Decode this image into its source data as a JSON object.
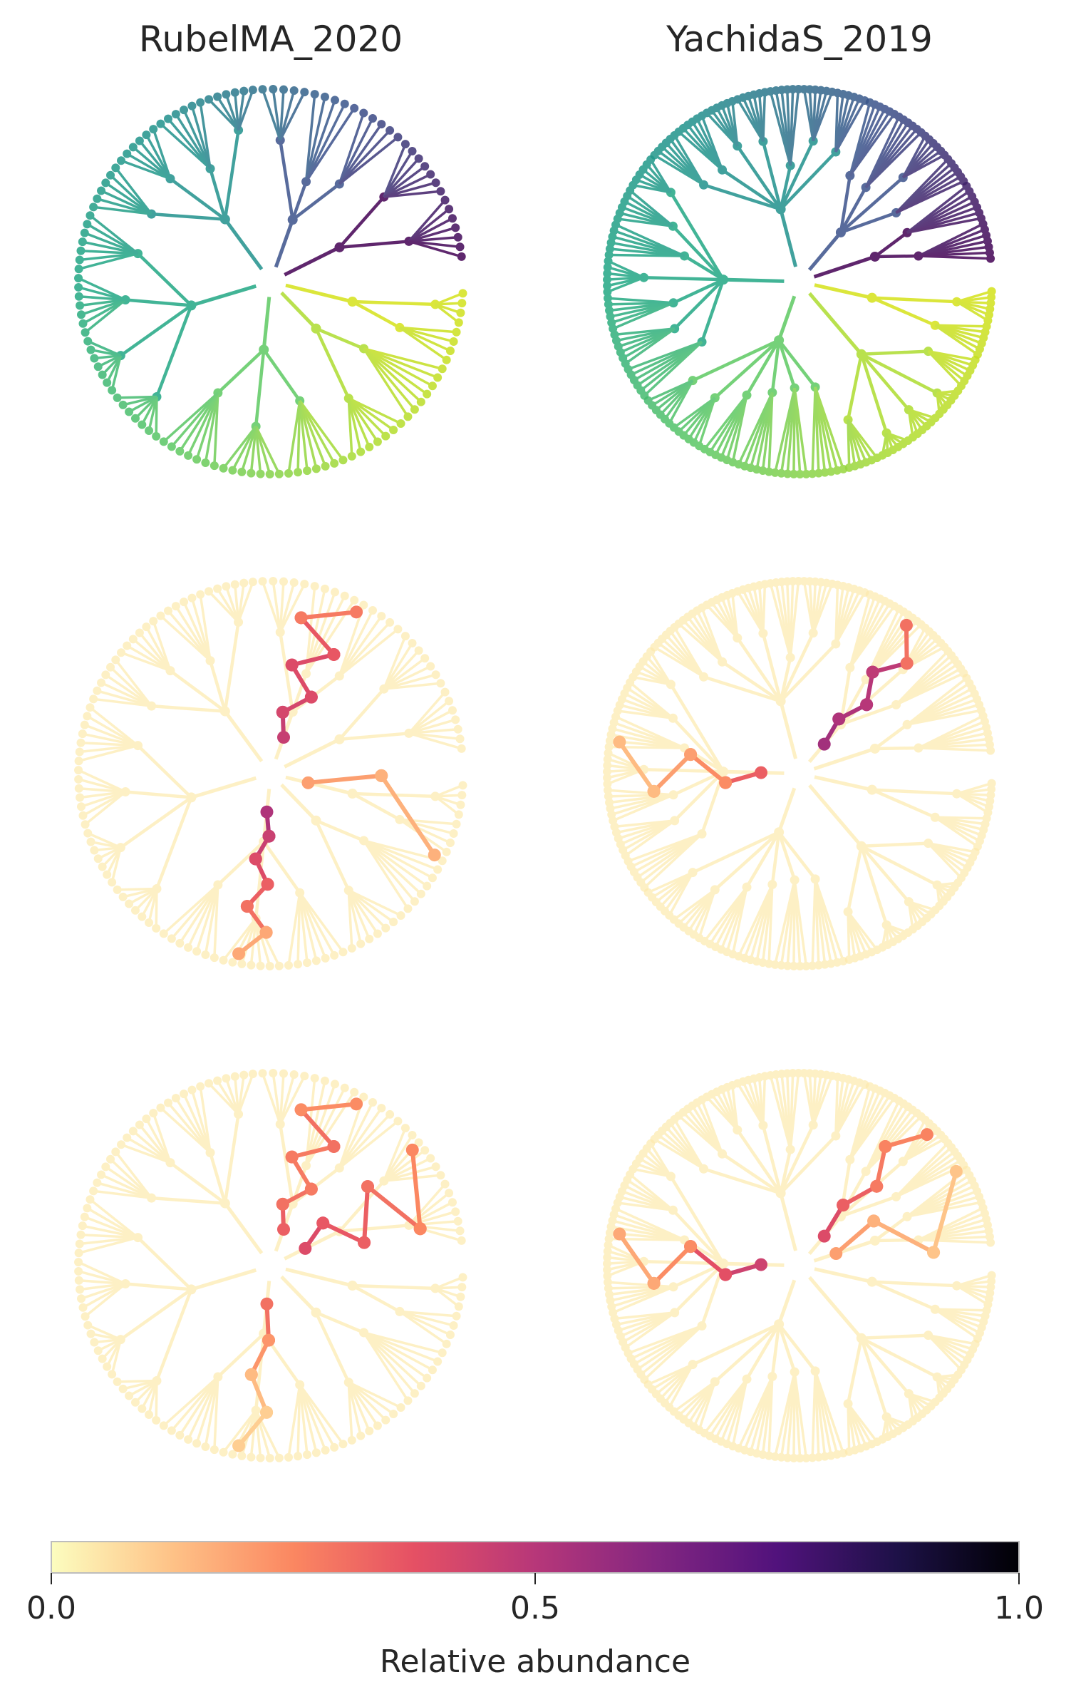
{
  "chart_data": {
    "type": "tree",
    "panel_titles": [
      "RubelMA_2020",
      "YachidaS_2019"
    ],
    "rows": [
      {
        "row": "taxonomy",
        "coloring": "viridis by leaf order"
      },
      {
        "row": "abundance_a",
        "coloring": "magma_r by relative abundance"
      },
      {
        "row": "abundance_b",
        "coloring": "magma_r by relative abundance"
      }
    ],
    "colorbar": {
      "label": "Relative abundance",
      "range": [
        0,
        1
      ],
      "ticks": [
        0.0,
        0.5,
        1.0
      ],
      "tick_labels": [
        "0.0",
        "0.5",
        "1.0"
      ],
      "colormap": "magma_r",
      "stops": [
        "#fcfdbf",
        "#fec287",
        "#fb8761",
        "#e55064",
        "#b73779",
        "#832681",
        "#51127c",
        "#1d1147",
        "#000004"
      ]
    },
    "taxonomy_colormap": [
      "#440154",
      "#3b528b",
      "#21918c",
      "#22a884",
      "#5ec962",
      "#addc30",
      "#d5e21a"
    ],
    "panels": [
      {
        "column": "RubelMA_2020",
        "leaf_count": 120,
        "clade_leaf_counts": [
          8,
          14,
          20,
          26,
          22,
          16,
          14
        ],
        "abundance_row_1": {
          "highlight_paths": [
            {
              "clade": 2,
              "values": [
                0.52,
                0.45,
                0.4,
                0.34,
                0.3,
                0.18
              ]
            },
            {
              "clade": 5,
              "values": [
                0.46,
                0.42,
                0.4,
                0.4,
                0.36,
                0.28
              ]
            },
            {
              "clade": 0,
              "values": [
                0.2,
                0.16
              ]
            }
          ]
        },
        "abundance_row_2": {
          "highlight_paths": [
            {
              "clade": 2,
              "values": [
                0.3,
                0.22,
                0.14,
                0.1
              ]
            },
            {
              "clade": 5,
              "values": [
                0.34,
                0.3,
                0.28,
                0.28,
                0.3,
                0.24
              ]
            },
            {
              "clade": 6,
              "values": [
                0.4,
                0.36,
                0.34,
                0.3,
                0.25
              ]
            }
          ]
        }
      },
      {
        "column": "YachidaS_2019",
        "leaf_count": 200,
        "clade_leaf_counts": [
          12,
          30,
          38,
          44,
          40,
          22,
          14
        ],
        "abundance_row_1": {
          "highlight_paths": [
            {
              "clade": 5,
              "values": [
                0.55,
                0.52,
                0.5,
                0.48,
                0.3
              ]
            },
            {
              "clade": 3,
              "values": [
                0.34,
                0.24,
                0.2,
                0.14
              ]
            }
          ]
        },
        "abundance_row_2": {
          "highlight_paths": [
            {
              "clade": 5,
              "values": [
                0.4,
                0.34,
                0.28,
                0.26
              ]
            },
            {
              "clade": 3,
              "values": [
                0.44,
                0.38,
                0.24,
                0.18
              ]
            },
            {
              "clade": 6,
              "values": [
                0.2,
                0.16,
                0.12
              ]
            }
          ]
        }
      }
    ]
  }
}
